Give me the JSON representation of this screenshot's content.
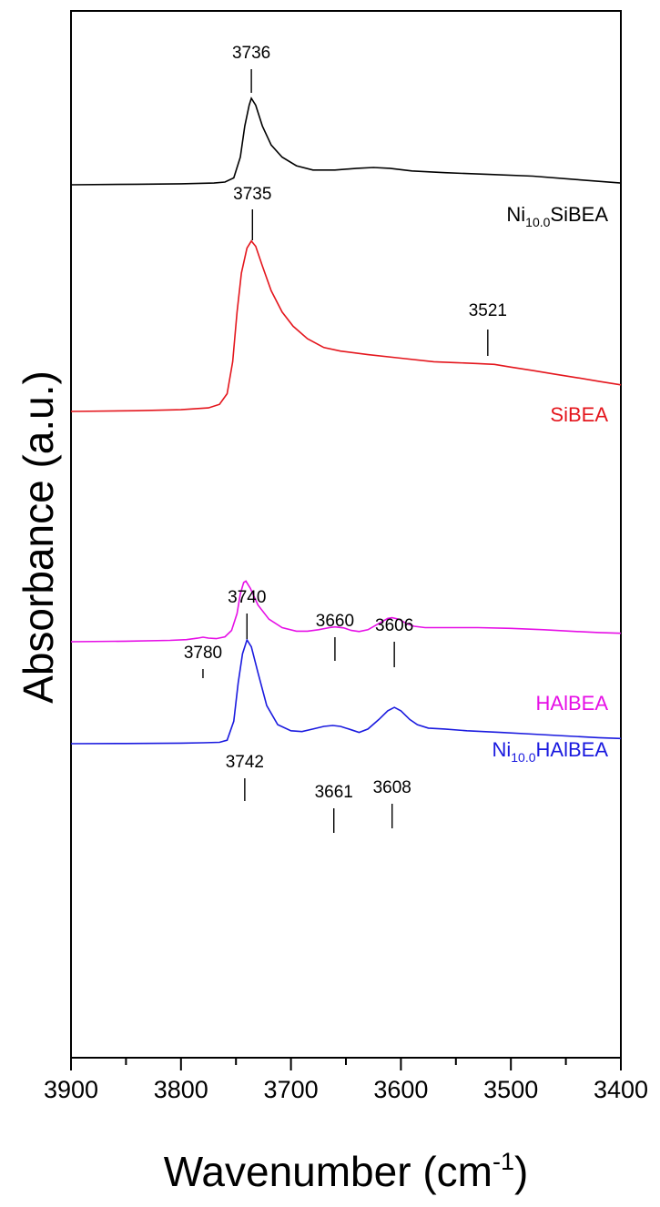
{
  "chart_data": {
    "type": "line",
    "xlabel_main": "Wavenumber (cm",
    "xlabel_sup": "-1",
    "xlabel_close": ")",
    "ylabel": "Absorbance (a.u.)",
    "xlim": [
      3900,
      3400
    ],
    "x_ticks": [
      "3900",
      "3800",
      "3700",
      "3600",
      "3500",
      "3400"
    ],
    "grid": false,
    "series": [
      {
        "key": "ni_sibea",
        "name_main": "Ni",
        "name_sub": "10.0",
        "name_rest": "SiBEA",
        "color": "#000000",
        "points": [
          [
            3900,
            0.0
          ],
          [
            3840,
            0.003
          ],
          [
            3800,
            0.006
          ],
          [
            3770,
            0.01
          ],
          [
            3760,
            0.016
          ],
          [
            3752,
            0.04
          ],
          [
            3746,
            0.16
          ],
          [
            3742,
            0.34
          ],
          [
            3738,
            0.46
          ],
          [
            3736,
            0.5
          ],
          [
            3732,
            0.46
          ],
          [
            3726,
            0.34
          ],
          [
            3718,
            0.23
          ],
          [
            3708,
            0.16
          ],
          [
            3695,
            0.11
          ],
          [
            3680,
            0.085
          ],
          [
            3660,
            0.085
          ],
          [
            3640,
            0.095
          ],
          [
            3625,
            0.1
          ],
          [
            3610,
            0.095
          ],
          [
            3590,
            0.08
          ],
          [
            3560,
            0.07
          ],
          [
            3520,
            0.06
          ],
          [
            3480,
            0.05
          ],
          [
            3440,
            0.03
          ],
          [
            3400,
            0.01
          ]
        ],
        "peaks": [
          {
            "x": 3736,
            "label": "3736"
          }
        ]
      },
      {
        "key": "sibea",
        "name_main": "SiBEA",
        "name_sub": "",
        "name_rest": "",
        "color": "#e4161d",
        "points": [
          [
            3900,
            0.0
          ],
          [
            3840,
            0.004
          ],
          [
            3800,
            0.01
          ],
          [
            3775,
            0.02
          ],
          [
            3765,
            0.04
          ],
          [
            3758,
            0.1
          ],
          [
            3753,
            0.28
          ],
          [
            3749,
            0.56
          ],
          [
            3745,
            0.78
          ],
          [
            3740,
            0.92
          ],
          [
            3736,
            0.96
          ],
          [
            3732,
            0.93
          ],
          [
            3726,
            0.82
          ],
          [
            3718,
            0.68
          ],
          [
            3708,
            0.56
          ],
          [
            3698,
            0.48
          ],
          [
            3685,
            0.41
          ],
          [
            3670,
            0.36
          ],
          [
            3655,
            0.34
          ],
          [
            3630,
            0.32
          ],
          [
            3600,
            0.3
          ],
          [
            3570,
            0.28
          ],
          [
            3550,
            0.275
          ],
          [
            3530,
            0.27
          ],
          [
            3515,
            0.265
          ],
          [
            3500,
            0.25
          ],
          [
            3480,
            0.23
          ],
          [
            3460,
            0.21
          ],
          [
            3440,
            0.19
          ],
          [
            3420,
            0.17
          ],
          [
            3400,
            0.15
          ]
        ],
        "peaks": [
          {
            "x": 3735,
            "label": "3735"
          },
          {
            "x": 3521,
            "label": "3521"
          }
        ]
      },
      {
        "key": "ni_halbea",
        "name_main": "Ni",
        "name_sub": "10.0",
        "name_rest": "HAlBEA",
        "color": "#1a1adf",
        "points": [
          [
            3900,
            0.0
          ],
          [
            3850,
            0.001
          ],
          [
            3800,
            0.003
          ],
          [
            3780,
            0.005
          ],
          [
            3765,
            0.008
          ],
          [
            3758,
            0.02
          ],
          [
            3752,
            0.13
          ],
          [
            3748,
            0.35
          ],
          [
            3744,
            0.52
          ],
          [
            3740,
            0.6
          ],
          [
            3736,
            0.56
          ],
          [
            3730,
            0.41
          ],
          [
            3722,
            0.22
          ],
          [
            3712,
            0.11
          ],
          [
            3700,
            0.075
          ],
          [
            3690,
            0.07
          ],
          [
            3680,
            0.085
          ],
          [
            3670,
            0.1
          ],
          [
            3662,
            0.105
          ],
          [
            3655,
            0.1
          ],
          [
            3645,
            0.08
          ],
          [
            3638,
            0.065
          ],
          [
            3630,
            0.085
          ],
          [
            3620,
            0.14
          ],
          [
            3612,
            0.19
          ],
          [
            3606,
            0.21
          ],
          [
            3600,
            0.19
          ],
          [
            3592,
            0.14
          ],
          [
            3585,
            0.11
          ],
          [
            3575,
            0.09
          ],
          [
            3560,
            0.085
          ],
          [
            3540,
            0.075
          ],
          [
            3510,
            0.065
          ],
          [
            3480,
            0.055
          ],
          [
            3450,
            0.045
          ],
          [
            3420,
            0.035
          ],
          [
            3400,
            0.03
          ]
        ],
        "peaks": [
          {
            "x": 3740,
            "label": "3740"
          },
          {
            "x": 3660,
            "label": "3660"
          },
          {
            "x": 3606,
            "label": "3606"
          }
        ]
      },
      {
        "key": "halbea",
        "name_main": "HAlBEA",
        "name_sub": "",
        "name_rest": "",
        "color": "#e60fe6",
        "points": [
          [
            3900,
            0.0
          ],
          [
            3850,
            0.004
          ],
          [
            3810,
            0.01
          ],
          [
            3795,
            0.015
          ],
          [
            3785,
            0.025
          ],
          [
            3780,
            0.032
          ],
          [
            3775,
            0.026
          ],
          [
            3768,
            0.022
          ],
          [
            3760,
            0.035
          ],
          [
            3754,
            0.08
          ],
          [
            3749,
            0.2
          ],
          [
            3746,
            0.34
          ],
          [
            3743,
            0.42
          ],
          [
            3741,
            0.43
          ],
          [
            3737,
            0.38
          ],
          [
            3730,
            0.26
          ],
          [
            3720,
            0.16
          ],
          [
            3708,
            0.1
          ],
          [
            3695,
            0.075
          ],
          [
            3685,
            0.075
          ],
          [
            3675,
            0.085
          ],
          [
            3665,
            0.1
          ],
          [
            3660,
            0.105
          ],
          [
            3652,
            0.098
          ],
          [
            3645,
            0.08
          ],
          [
            3638,
            0.072
          ],
          [
            3630,
            0.085
          ],
          [
            3620,
            0.13
          ],
          [
            3612,
            0.165
          ],
          [
            3608,
            0.17
          ],
          [
            3602,
            0.16
          ],
          [
            3595,
            0.13
          ],
          [
            3588,
            0.11
          ],
          [
            3578,
            0.1
          ],
          [
            3560,
            0.1
          ],
          [
            3530,
            0.1
          ],
          [
            3500,
            0.095
          ],
          [
            3470,
            0.085
          ],
          [
            3440,
            0.072
          ],
          [
            3420,
            0.065
          ],
          [
            3400,
            0.06
          ]
        ],
        "peaks": [
          {
            "x": 3780,
            "label": "3780"
          },
          {
            "x": 3742,
            "label": "3742"
          },
          {
            "x": 3661,
            "label": "3661"
          },
          {
            "x": 3608,
            "label": "3608"
          }
        ]
      }
    ]
  }
}
